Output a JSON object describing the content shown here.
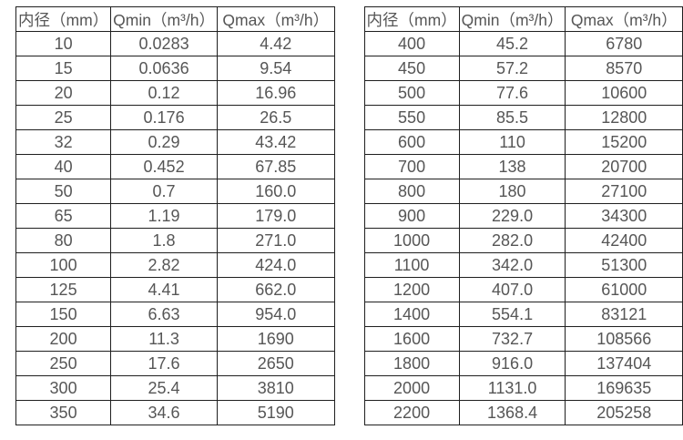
{
  "page": {
    "background_color": "#ffffff",
    "border_color": "#1f1f1f",
    "text_color": "#565656"
  },
  "tables": [
    {
      "name": "flow-spec-table-small-diameters",
      "headers": [
        "内径（mm）",
        "Qmin（m³/h）",
        "Qmax（m³/h）"
      ],
      "rows": [
        [
          "10",
          "0.0283",
          "4.42"
        ],
        [
          "15",
          "0.0636",
          "9.54"
        ],
        [
          "20",
          "0.12",
          "16.96"
        ],
        [
          "25",
          "0.176",
          "26.5"
        ],
        [
          "32",
          "0.29",
          "43.42"
        ],
        [
          "40",
          "0.452",
          "67.85"
        ],
        [
          "50",
          "0.7",
          "160.0"
        ],
        [
          "65",
          "1.19",
          "179.0"
        ],
        [
          "80",
          "1.8",
          "271.0"
        ],
        [
          "100",
          "2.82",
          "424.0"
        ],
        [
          "125",
          "4.41",
          "662.0"
        ],
        [
          "150",
          "6.63",
          "954.0"
        ],
        [
          "200",
          "11.3",
          "1690"
        ],
        [
          "250",
          "17.6",
          "2650"
        ],
        [
          "300",
          "25.4",
          "3810"
        ],
        [
          "350",
          "34.6",
          "5190"
        ]
      ]
    },
    {
      "name": "flow-spec-table-large-diameters",
      "headers": [
        "内径（mm）",
        "Qmin（m³/h）",
        "Qmax（m³/h）"
      ],
      "rows": [
        [
          "400",
          "45.2",
          "6780"
        ],
        [
          "450",
          "57.2",
          "8570"
        ],
        [
          "500",
          "77.6",
          "10600"
        ],
        [
          "550",
          "85.5",
          "12800"
        ],
        [
          "600",
          "110",
          "15200"
        ],
        [
          "700",
          "138",
          "20700"
        ],
        [
          "800",
          "180",
          "27100"
        ],
        [
          "900",
          "229.0",
          "34300"
        ],
        [
          "1000",
          "282.0",
          "42400"
        ],
        [
          "1100",
          "342.0",
          "51300"
        ],
        [
          "1200",
          "407.0",
          "61000"
        ],
        [
          "1400",
          "554.1",
          "83121"
        ],
        [
          "1600",
          "732.7",
          "108566"
        ],
        [
          "1800",
          "916.0",
          "137404"
        ],
        [
          "2000",
          "1131.0",
          "169635"
        ],
        [
          "2200",
          "1368.4",
          "205258"
        ]
      ]
    }
  ]
}
